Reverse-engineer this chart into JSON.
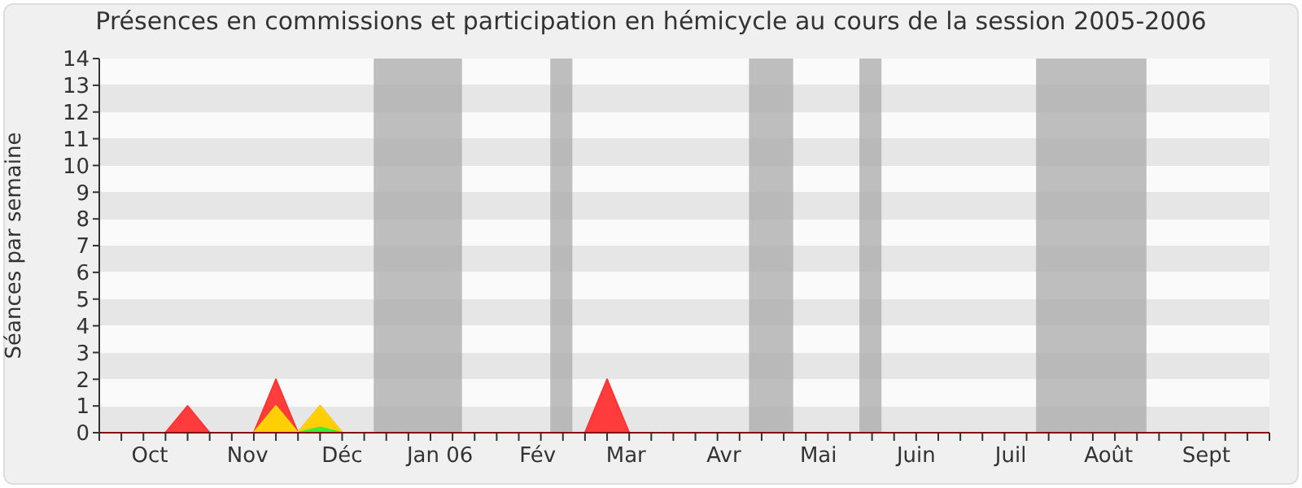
{
  "chart_data": {
    "type": "area",
    "title": "Présences en commissions et participation en hémicycle au cours de la session 2005-2006",
    "ylabel": "Séances par semaine",
    "x": [
      "2005-09-15",
      "2005-09-22",
      "2005-09-29",
      "2005-10-06",
      "2005-10-13",
      "2005-10-20",
      "2005-10-27",
      "2005-11-03",
      "2005-11-10",
      "2005-11-17",
      "2005-11-24",
      "2005-12-01",
      "2005-12-08",
      "2005-12-15",
      "2005-12-22",
      "2005-12-29",
      "2006-01-05",
      "2006-01-12",
      "2006-01-19",
      "2006-01-26",
      "2006-02-02",
      "2006-02-09",
      "2006-02-16",
      "2006-02-23",
      "2006-03-02",
      "2006-03-09",
      "2006-03-16",
      "2006-03-23",
      "2006-03-30",
      "2006-04-06",
      "2006-04-13",
      "2006-04-20",
      "2006-04-27",
      "2006-05-04",
      "2006-05-11",
      "2006-05-18",
      "2006-05-25",
      "2006-06-01",
      "2006-06-08",
      "2006-06-15",
      "2006-06-22",
      "2006-06-29",
      "2006-07-06",
      "2006-07-13",
      "2006-07-20",
      "2006-07-27",
      "2006-08-03",
      "2006-08-10",
      "2006-08-17",
      "2006-08-24",
      "2006-08-31",
      "2006-09-07",
      "2006-09-14",
      "2006-09-21"
    ],
    "series": [
      {
        "color": "#ff3333",
        "values": [
          0,
          0,
          0,
          0,
          1,
          0,
          0,
          0,
          2,
          0,
          1,
          0,
          0,
          0,
          0,
          0,
          0,
          0,
          0,
          0,
          0,
          0,
          0,
          2,
          0,
          0,
          0,
          0,
          0,
          0,
          0,
          0,
          0,
          0,
          0,
          0,
          0,
          0,
          0,
          0,
          0,
          0,
          0,
          0,
          0,
          0,
          0,
          0,
          0,
          0,
          0,
          0,
          0,
          0
        ]
      },
      {
        "color": "#ffd700",
        "values": [
          0,
          0,
          0,
          0,
          0,
          0,
          0,
          0,
          1,
          0,
          1,
          0,
          0,
          0,
          0,
          0,
          0,
          0,
          0,
          0,
          0,
          0,
          0,
          0,
          0,
          0,
          0,
          0,
          0,
          0,
          0,
          0,
          0,
          0,
          0,
          0,
          0,
          0,
          0,
          0,
          0,
          0,
          0,
          0,
          0,
          0,
          0,
          0,
          0,
          0,
          0,
          0,
          0,
          0
        ]
      },
      {
        "color": "#33ee33",
        "values": [
          0,
          0,
          0,
          0,
          0,
          0,
          0,
          0,
          0,
          0,
          0.2,
          0,
          0,
          0,
          0,
          0,
          0,
          0,
          0,
          0,
          0,
          0,
          0,
          0,
          0,
          0,
          0,
          0,
          0,
          0,
          0,
          0,
          0,
          0,
          0,
          0,
          0,
          0,
          0,
          0,
          0,
          0,
          0,
          0,
          0,
          0,
          0,
          0,
          0,
          0,
          0,
          0,
          0,
          0
        ]
      }
    ],
    "xlim": [
      "2005-09-15",
      "2006-09-21"
    ],
    "xticks": [
      {
        "value": "2005-10-01",
        "label": "Oct"
      },
      {
        "value": "2005-11-01",
        "label": "Nov"
      },
      {
        "value": "2005-12-01",
        "label": "Déc"
      },
      {
        "value": "2006-01-01",
        "label": "Jan 06"
      },
      {
        "value": "2006-02-01",
        "label": "Fév"
      },
      {
        "value": "2006-03-01",
        "label": "Mar"
      },
      {
        "value": "2006-04-01",
        "label": "Avr"
      },
      {
        "value": "2006-05-01",
        "label": "Mai"
      },
      {
        "value": "2006-06-01",
        "label": "Juin"
      },
      {
        "value": "2006-07-01",
        "label": "Juil"
      },
      {
        "value": "2006-08-01",
        "label": "Août"
      },
      {
        "value": "2006-09-01",
        "label": "Sept"
      }
    ],
    "ylim": [
      0,
      14
    ],
    "yticks": [
      0,
      1,
      2,
      3,
      4,
      5,
      6,
      7,
      8,
      9,
      10,
      11,
      12,
      13,
      14
    ],
    "bands": [
      {
        "axis": "x",
        "from": "2005-12-11",
        "to": "2006-01-08",
        "color": "#aaaaaa"
      },
      {
        "axis": "x",
        "from": "2006-02-05",
        "to": "2006-02-12",
        "color": "#aaaaaa"
      },
      {
        "axis": "x",
        "from": "2006-04-09",
        "to": "2006-04-23",
        "color": "#aaaaaa"
      },
      {
        "axis": "x",
        "from": "2006-05-14",
        "to": "2006-05-21",
        "color": "#aaaaaa"
      },
      {
        "axis": "x",
        "from": "2006-07-09",
        "to": "2006-08-13",
        "color": "#aaaaaa"
      }
    ]
  }
}
